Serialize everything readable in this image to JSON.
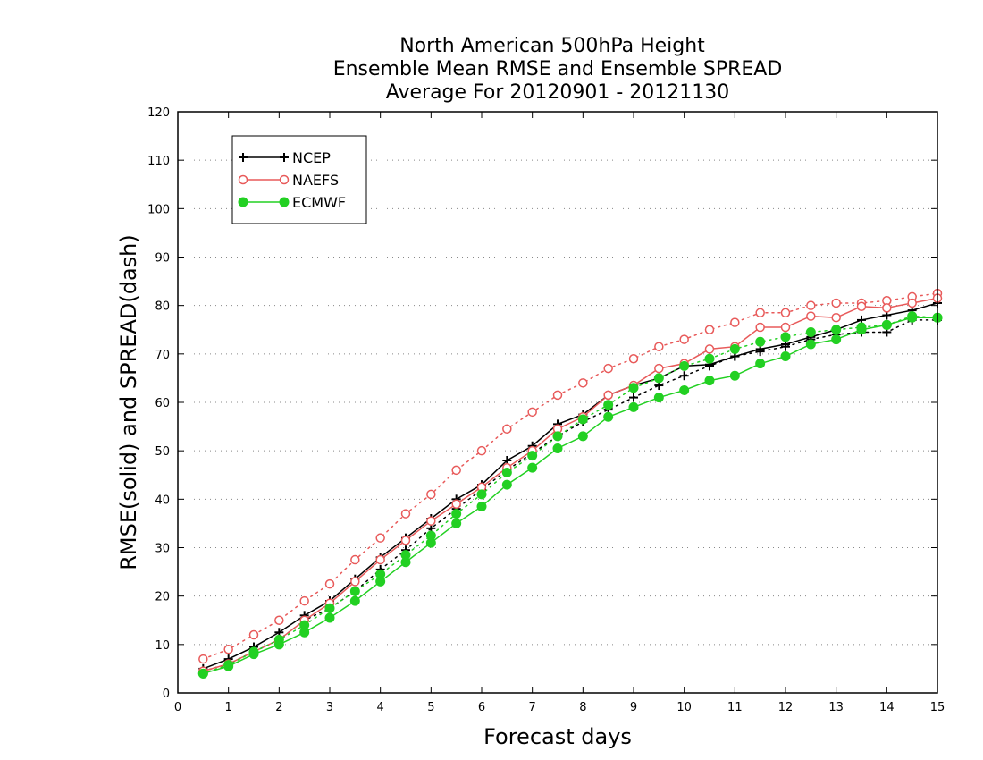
{
  "chart_data": {
    "type": "line",
    "title": [
      "North American 500hPa Height",
      "Ensemble Mean RMSE and Ensemble SPREAD",
      "Average For 20120901 - 20121130"
    ],
    "xlabel": "Forecast days",
    "ylabel": "RMSE(solid) and SPREAD(dash)",
    "xlim": [
      0,
      15
    ],
    "ylim": [
      0,
      120
    ],
    "xticks": [
      "0",
      "1",
      "2",
      "3",
      "4",
      "5",
      "6",
      "7",
      "8",
      "9",
      "10",
      "11",
      "12",
      "13",
      "14",
      "15"
    ],
    "yticks": [
      "0",
      "10",
      "20",
      "30",
      "40",
      "50",
      "60",
      "70",
      "80",
      "90",
      "100",
      "110",
      "120"
    ],
    "grid": "horizontal dotted",
    "legend_position": "top-left",
    "x": [
      0.5,
      1,
      1.5,
      2,
      2.5,
      3,
      3.5,
      4,
      4.5,
      5,
      5.5,
      6,
      6.5,
      7,
      7.5,
      8,
      8.5,
      9,
      9.5,
      10,
      10.5,
      11,
      11.5,
      12,
      12.5,
      13,
      13.5,
      14,
      14.5,
      15
    ],
    "series": [
      {
        "name": "NCEP",
        "color": "#000000",
        "marker": "plus",
        "rmse": [
          5,
          7,
          9.5,
          12.5,
          16,
          19,
          23.5,
          28,
          32,
          36,
          40,
          43,
          48,
          51,
          55.5,
          57.5,
          61.5,
          63.5,
          65,
          67.5,
          67.8,
          69.5,
          71,
          72,
          73.5,
          75,
          77,
          78,
          79,
          80.5
        ],
        "spread": [
          4.5,
          6,
          8.5,
          11,
          15,
          17.5,
          21,
          25.5,
          29.5,
          34,
          38,
          42,
          46,
          49.5,
          53,
          56,
          58.5,
          61,
          63.5,
          65.5,
          67.5,
          69.5,
          70.5,
          71.5,
          73,
          74,
          74.5,
          74.5,
          77,
          77
        ]
      },
      {
        "name": "NAEFS",
        "color": "#e85a5a",
        "marker": "open-circle",
        "rmse": [
          4.5,
          6,
          8.5,
          11,
          15,
          18.5,
          23,
          27.5,
          31.5,
          35.5,
          39,
          42.5,
          46.5,
          50,
          54.5,
          57,
          61.5,
          63.5,
          67,
          68,
          71,
          71.5,
          75.5,
          75.5,
          77.8,
          77.5,
          79.8,
          79.5,
          80.5,
          81.5
        ],
        "spread": [
          7,
          9,
          12,
          15,
          19,
          22.5,
          27.5,
          32,
          37,
          41,
          46,
          50,
          54.5,
          58,
          61.5,
          64,
          67,
          69,
          71.5,
          73,
          75,
          76.5,
          78.5,
          78.5,
          80,
          80.5,
          80.5,
          81,
          81.8,
          82.5
        ]
      },
      {
        "name": "ECMWF",
        "color": "#22d022",
        "marker": "filled-circle",
        "rmse": [
          4,
          5.5,
          8,
          10,
          12.5,
          15.5,
          19,
          23,
          27,
          31,
          35,
          38.5,
          43,
          46.5,
          50.5,
          53,
          57,
          59,
          61,
          62.5,
          64.5,
          65.5,
          68,
          69.5,
          72,
          73,
          75,
          76,
          77.5,
          77.5
        ],
        "spread": [
          4,
          5.8,
          8.5,
          11,
          14,
          17.5,
          21,
          24.5,
          28.5,
          32.5,
          37,
          41,
          45.5,
          49,
          53,
          56.5,
          59.5,
          63,
          65,
          67.5,
          69,
          71,
          72.5,
          73.5,
          74.5,
          75,
          75.5,
          76,
          77.8,
          77.5
        ]
      }
    ]
  }
}
